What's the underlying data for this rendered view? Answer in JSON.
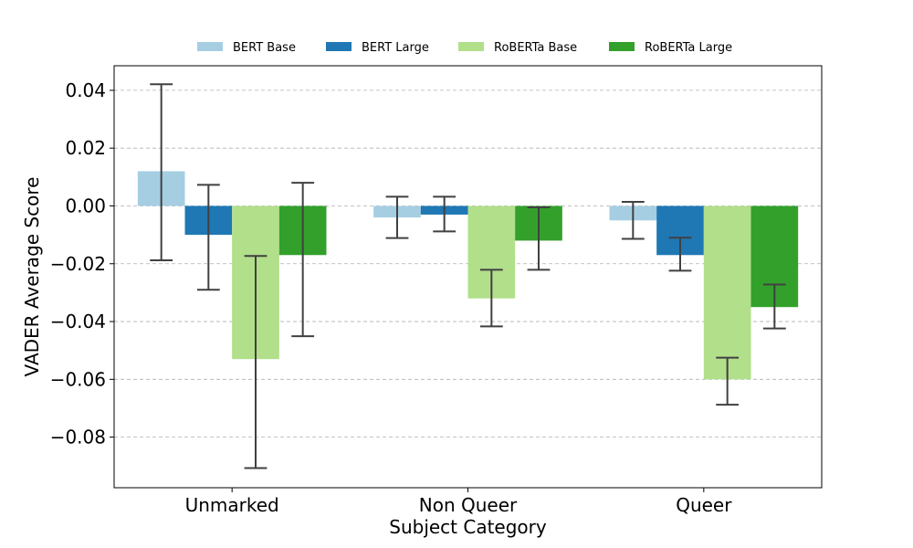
{
  "chart_data": {
    "type": "bar",
    "categories": [
      "Unmarked",
      "Non Queer",
      "Queer"
    ],
    "xlabel": "Subject Category",
    "ylabel": "VADER Average Score",
    "ylim": [
      -0.0975,
      0.0485
    ],
    "yticks": [
      0.04,
      0.02,
      0.0,
      -0.02,
      -0.04,
      -0.06,
      -0.08
    ],
    "ytick_labels": [
      "0.04",
      "0.02",
      "0.00",
      "−0.02",
      "−0.04",
      "−0.06",
      "−0.08"
    ],
    "grid": "horizontal dashed",
    "legend_position": "top-center",
    "series": [
      {
        "name": "BERT Base",
        "color": "#a6cee3",
        "values": [
          0.012,
          -0.004,
          -0.005
        ],
        "err_low": [
          -0.0188,
          -0.0111,
          -0.0114
        ],
        "err_high": [
          0.0421,
          0.0032,
          0.0014
        ]
      },
      {
        "name": "BERT Large",
        "color": "#1f78b4",
        "values": [
          -0.01,
          -0.003,
          -0.017
        ],
        "err_low": [
          -0.029,
          -0.0088,
          -0.0224
        ],
        "err_high": [
          0.0073,
          0.0032,
          -0.011
        ]
      },
      {
        "name": "RoBERTa Base",
        "color": "#b2df8a",
        "values": [
          -0.053,
          -0.032,
          -0.06
        ],
        "err_low": [
          -0.0907,
          -0.0417,
          -0.0688
        ],
        "err_high": [
          -0.0173,
          -0.0221,
          -0.0525
        ]
      },
      {
        "name": "RoBERTa Large",
        "color": "#33a02c",
        "values": [
          -0.017,
          -0.012,
          -0.035
        ],
        "err_low": [
          -0.0451,
          -0.0221,
          -0.0424
        ],
        "err_high": [
          0.008,
          -0.0005,
          -0.0272
        ]
      }
    ]
  }
}
